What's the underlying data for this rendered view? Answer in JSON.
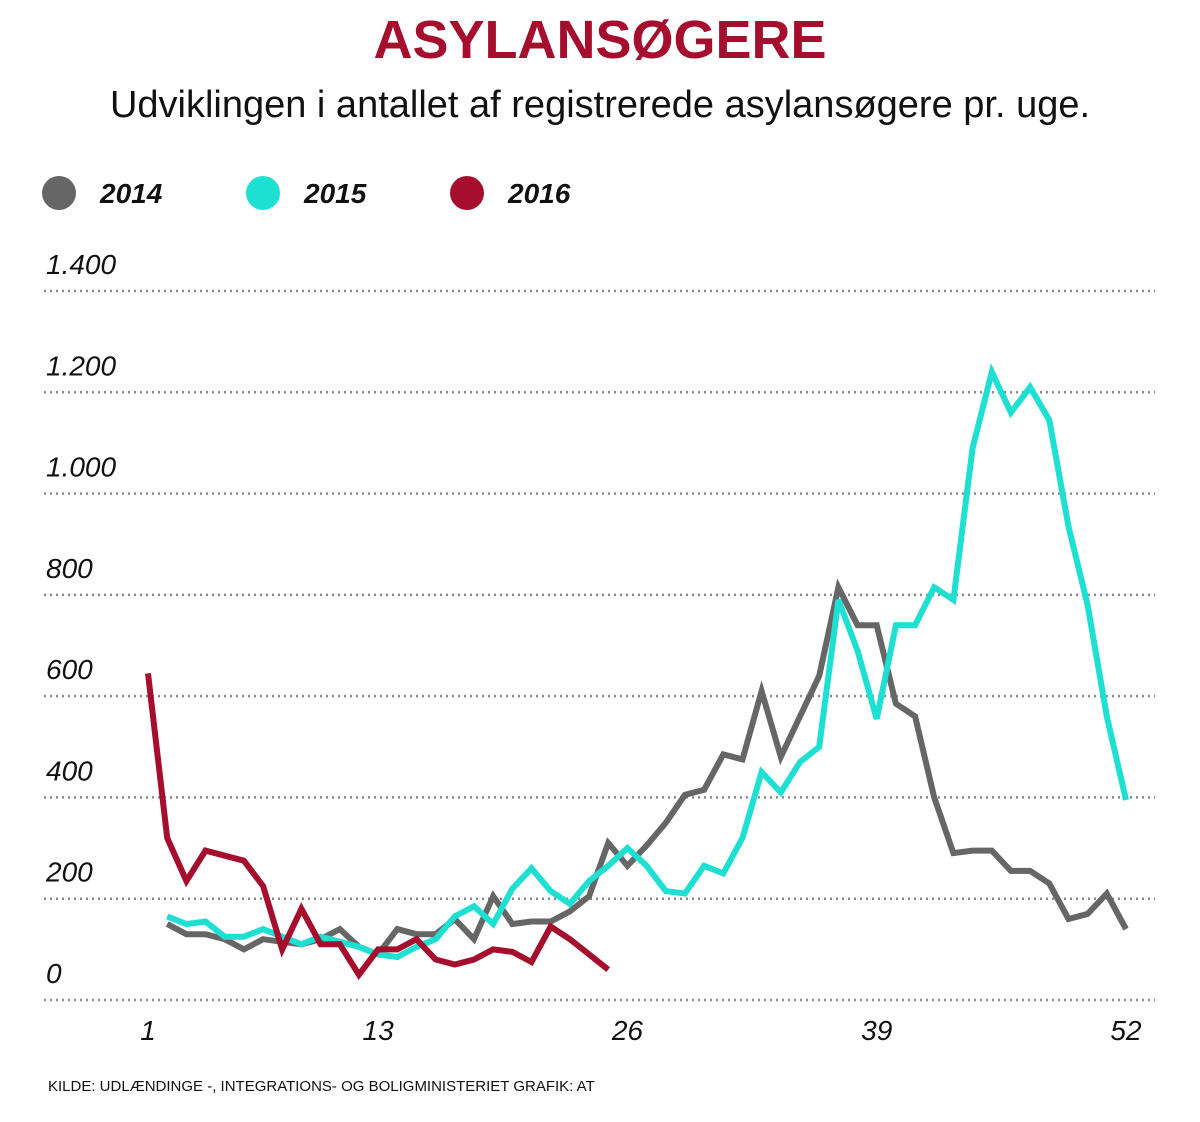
{
  "title": "ASYLANSØGERE",
  "subtitle": "Udviklingen i antallet af registrerede asylansøgere pr. uge.",
  "source": "KILDE: UDLÆNDINGE -, INTEGRATIONS- OG BOLIGMINISTERIET  GRAFIK: AT",
  "legend": [
    {
      "label": "2014",
      "color": "#666666"
    },
    {
      "label": "2015",
      "color": "#1ddfd2"
    },
    {
      "label": "2016",
      "color": "#a50f2d"
    }
  ],
  "chart_data": {
    "type": "line",
    "title": "ASYLANSØGERE",
    "subtitle": "Udviklingen i antallet af registrerede asylansøgere pr. uge.",
    "xlabel": "",
    "ylabel": "",
    "xlim": [
      1,
      52
    ],
    "ylim": [
      0,
      1400
    ],
    "x_ticks": [
      1,
      13,
      26,
      39,
      52
    ],
    "y_ticks": [
      0,
      200,
      400,
      600,
      800,
      1000,
      1200,
      1400
    ],
    "x_tick_labels": [
      "1",
      "13",
      "26",
      "39",
      "52"
    ],
    "y_tick_labels": [
      "0",
      "200",
      "400",
      "600",
      "800",
      "1.000",
      "1.200",
      "1.400"
    ],
    "grid": "horizontal dotted",
    "legend_position": "top-left",
    "series": [
      {
        "name": "2014",
        "color": "#666666",
        "x": [
          2,
          3,
          4,
          5,
          6,
          7,
          8,
          9,
          10,
          11,
          12,
          13,
          14,
          15,
          16,
          17,
          18,
          19,
          20,
          21,
          22,
          23,
          24,
          25,
          26,
          27,
          28,
          29,
          30,
          31,
          32,
          33,
          34,
          35,
          36,
          37,
          38,
          39,
          40,
          41,
          42,
          43,
          44,
          45,
          46,
          47,
          48,
          49,
          50,
          51,
          52
        ],
        "values": [
          150,
          130,
          130,
          120,
          100,
          120,
          115,
          110,
          120,
          140,
          105,
          90,
          140,
          130,
          130,
          160,
          120,
          205,
          150,
          155,
          155,
          175,
          205,
          310,
          265,
          305,
          350,
          405,
          415,
          485,
          475,
          610,
          480,
          560,
          640,
          815,
          740,
          740,
          585,
          560,
          400,
          290,
          295,
          295,
          255,
          255,
          230,
          160,
          170,
          210,
          140
        ]
      },
      {
        "name": "2015",
        "color": "#1ddfd2",
        "x": [
          2,
          3,
          4,
          5,
          6,
          7,
          8,
          9,
          10,
          11,
          12,
          13,
          14,
          15,
          16,
          17,
          18,
          19,
          20,
          21,
          22,
          23,
          24,
          25,
          26,
          27,
          28,
          29,
          30,
          31,
          32,
          33,
          34,
          35,
          36,
          37,
          38,
          39,
          40,
          41,
          42,
          43,
          44,
          45,
          46,
          47,
          48,
          49,
          50,
          51,
          52
        ],
        "values": [
          165,
          150,
          155,
          125,
          125,
          140,
          125,
          110,
          125,
          115,
          105,
          90,
          85,
          105,
          120,
          165,
          185,
          150,
          220,
          260,
          215,
          190,
          235,
          265,
          300,
          265,
          215,
          210,
          265,
          250,
          320,
          450,
          410,
          470,
          500,
          790,
          690,
          555,
          740,
          740,
          815,
          790,
          1090,
          1240,
          1160,
          1210,
          1145,
          935,
          780,
          560,
          395
        ]
      },
      {
        "name": "2016",
        "color": "#a50f2d",
        "x": [
          1,
          2,
          3,
          4,
          5,
          6,
          7,
          8,
          9,
          10,
          11,
          12,
          13,
          14,
          15,
          16,
          17,
          18,
          19,
          20,
          21,
          22,
          23,
          24,
          25
        ],
        "values": [
          645,
          320,
          235,
          295,
          285,
          275,
          225,
          100,
          180,
          110,
          110,
          50,
          100,
          100,
          120,
          80,
          70,
          80,
          100,
          95,
          75,
          145,
          120,
          90,
          60
        ]
      }
    ]
  }
}
